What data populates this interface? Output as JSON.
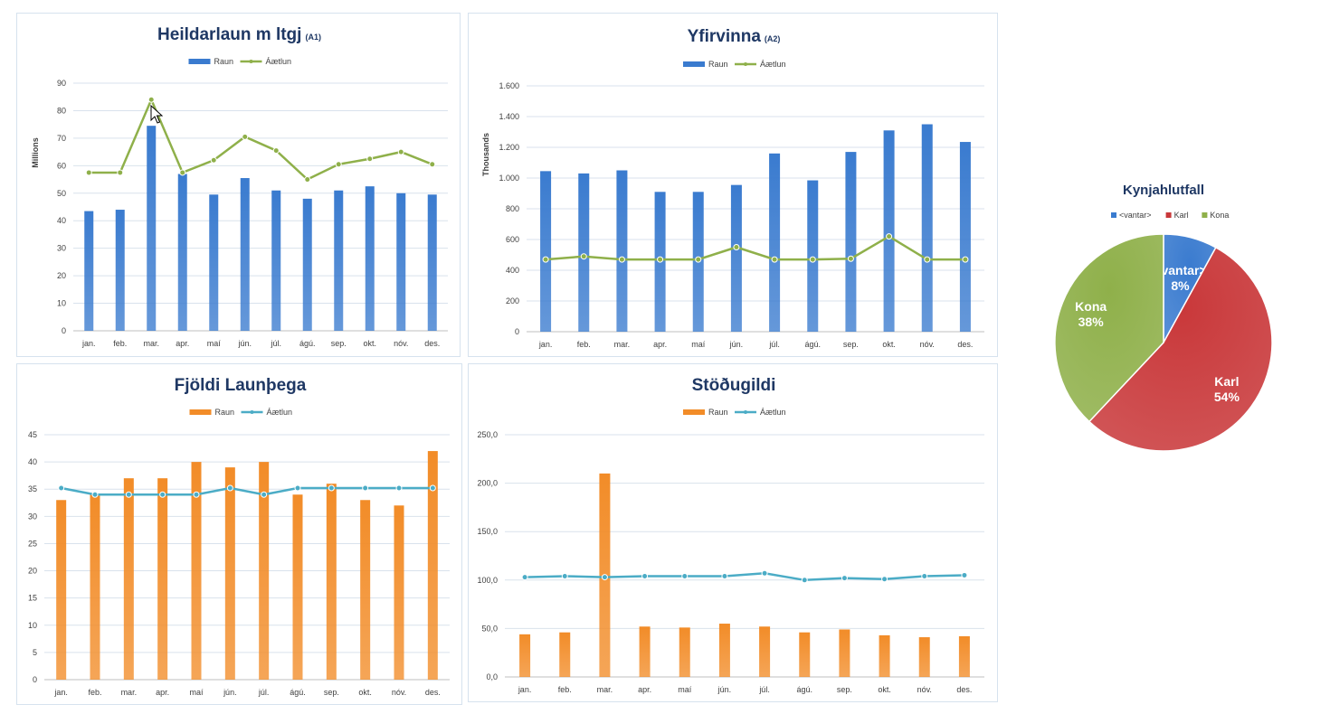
{
  "chart_data": [
    {
      "id": "c1",
      "type": "bar+line",
      "title": "Heildarlaun m ltgj",
      "subtitle": "(A1)",
      "ylabel": "Millions",
      "categories": [
        "jan.",
        "feb.",
        "mar.",
        "apr.",
        "maí",
        "jún.",
        "júl.",
        "ágú.",
        "sep.",
        "okt.",
        "nóv.",
        "des."
      ],
      "ylim": [
        0,
        90
      ],
      "yticks": [
        0,
        10,
        20,
        30,
        40,
        50,
        60,
        70,
        80,
        90
      ],
      "ytick_labels": [
        "0",
        "10",
        "20",
        "30",
        "40",
        "50",
        "60",
        "70",
        "80",
        "90"
      ],
      "grid": true,
      "legend": "top-center",
      "series": [
        {
          "name": "Raun",
          "kind": "bar",
          "color": "#3a7bcf",
          "values": [
            43.5,
            44,
            74.5,
            57,
            49.5,
            55.5,
            51,
            48,
            51,
            52.5,
            50,
            49.5
          ]
        },
        {
          "name": "Áætlun",
          "kind": "line",
          "color": "#8fb04a",
          "values": [
            57.5,
            57.5,
            84,
            57.5,
            62,
            70.5,
            65.5,
            55,
            60.5,
            62.5,
            65,
            60.5
          ]
        }
      ]
    },
    {
      "id": "c2",
      "type": "bar+line",
      "title": "Yfirvinna",
      "subtitle": "(A2)",
      "ylabel": "Thousands",
      "categories": [
        "jan.",
        "feb.",
        "mar.",
        "apr.",
        "maí",
        "jún.",
        "júl.",
        "ágú.",
        "sep.",
        "okt.",
        "nóv.",
        "des."
      ],
      "ylim": [
        0,
        1600
      ],
      "yticks": [
        0,
        200,
        400,
        600,
        800,
        1000,
        1200,
        1400,
        1600
      ],
      "ytick_labels": [
        "0",
        "200",
        "400",
        "600",
        "800",
        "1.000",
        "1.200",
        "1.400",
        "1.600"
      ],
      "grid": true,
      "legend": "top-center",
      "series": [
        {
          "name": "Raun",
          "kind": "bar",
          "color": "#3a7bcf",
          "values": [
            1045,
            1030,
            1050,
            910,
            910,
            955,
            1160,
            985,
            1170,
            1310,
            1350,
            1235
          ]
        },
        {
          "name": "Áætlun",
          "kind": "line",
          "color": "#8fb04a",
          "values": [
            470,
            490,
            470,
            470,
            470,
            550,
            470,
            470,
            475,
            620,
            470,
            470
          ]
        }
      ]
    },
    {
      "id": "c3",
      "type": "bar+line",
      "title": "Fjöldi Launþega",
      "subtitle": "",
      "ylabel": "",
      "categories": [
        "jan.",
        "feb.",
        "mar.",
        "apr.",
        "maí",
        "jún.",
        "júl.",
        "ágú.",
        "sep.",
        "okt.",
        "nóv.",
        "des."
      ],
      "ylim": [
        0,
        45
      ],
      "yticks": [
        0,
        5,
        10,
        15,
        20,
        25,
        30,
        35,
        40,
        45
      ],
      "ytick_labels": [
        "0",
        "5",
        "10",
        "15",
        "20",
        "25",
        "30",
        "35",
        "40",
        "45"
      ],
      "grid": true,
      "legend": "top-center",
      "series": [
        {
          "name": "Raun",
          "kind": "bar",
          "color": "#f28c28",
          "values": [
            33,
            34,
            37,
            37,
            40,
            39,
            40,
            34,
            36,
            33,
            32,
            42
          ]
        },
        {
          "name": "Áætlun",
          "kind": "line",
          "color": "#4bacc6",
          "values": [
            35.2,
            34,
            34,
            34,
            34,
            35.2,
            34,
            35.2,
            35.2,
            35.2,
            35.2,
            35.2
          ]
        }
      ]
    },
    {
      "id": "c4",
      "type": "bar+line",
      "title": "Stöðugildi",
      "subtitle": "",
      "ylabel": "",
      "categories": [
        "jan.",
        "feb.",
        "mar.",
        "apr.",
        "maí",
        "jún.",
        "júl.",
        "ágú.",
        "sep.",
        "okt.",
        "nóv.",
        "des."
      ],
      "ylim": [
        0,
        250
      ],
      "yticks": [
        0,
        50,
        100,
        150,
        200,
        250
      ],
      "ytick_labels": [
        "0,0",
        "50,0",
        "100,0",
        "150,0",
        "200,0",
        "250,0"
      ],
      "grid": true,
      "legend": "top-center",
      "series": [
        {
          "name": "Raun",
          "kind": "bar",
          "color": "#f28c28",
          "values": [
            44,
            46,
            210,
            52,
            51,
            55,
            52,
            46,
            49,
            43,
            41,
            42
          ]
        },
        {
          "name": "Áætlun",
          "kind": "line",
          "color": "#4bacc6",
          "values": [
            103,
            104,
            103,
            104,
            104,
            104,
            107,
            100,
            102,
            101,
            104,
            105
          ]
        }
      ]
    },
    {
      "id": "c5",
      "type": "pie",
      "title": "Kynjahlutfall",
      "legend": "top-center",
      "slices": [
        {
          "name": "<vantar>",
          "value": 8,
          "label": "8%",
          "color": "#3a7bcf"
        },
        {
          "name": "Karl",
          "value": 54,
          "label": "54%",
          "color": "#c9383a"
        },
        {
          "name": "Kona",
          "value": 38,
          "label": "38%",
          "color": "#8fb04a"
        }
      ]
    }
  ]
}
